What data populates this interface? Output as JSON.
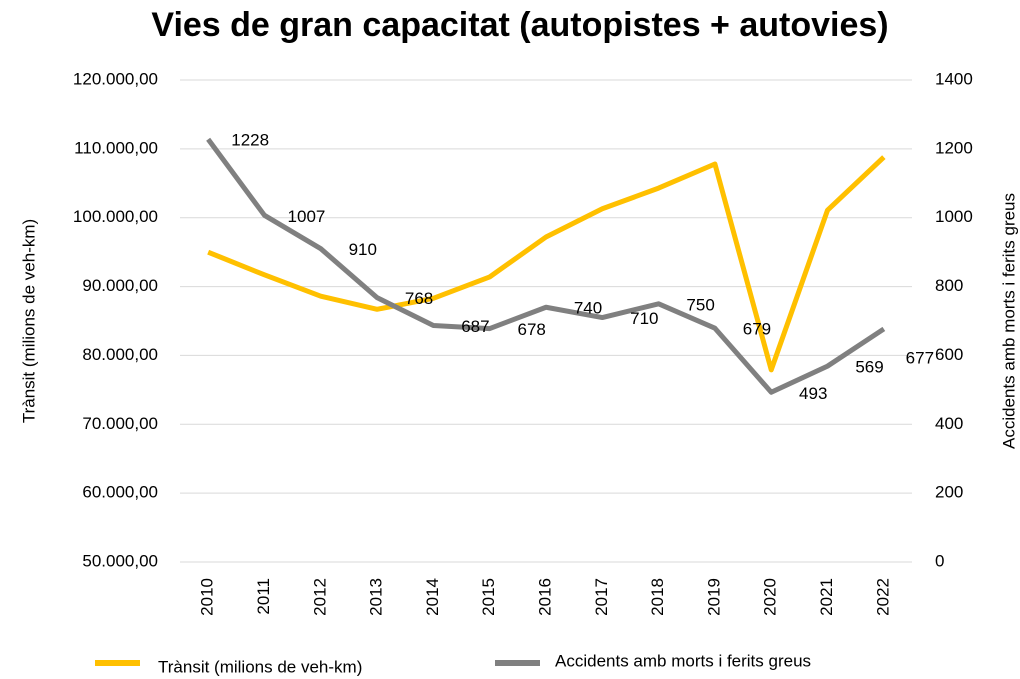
{
  "chart_data": {
    "type": "line",
    "title": "Vies de gran capacitat (autopistes + autovies)",
    "y_label": "Trànsit (milions de veh-km)",
    "y2_label": "Accidents amb morts i ferits greus",
    "categories": [
      "2010",
      "2011",
      "2012",
      "2013",
      "2014",
      "2015",
      "2016",
      "2017",
      "2018",
      "2019",
      "2020",
      "2021",
      "2022"
    ],
    "series": [
      {
        "name": "Trànsit (milions de veh-km)",
        "color": "#ffc000",
        "values": [
          95000,
          91700,
          88600,
          86700,
          88300,
          91400,
          97200,
          101300,
          104300,
          107800,
          77900,
          101100,
          108800
        ]
      },
      {
        "name": "Accidents amb morts i ferits greus",
        "color": "#808080",
        "axis": "y2",
        "values": [
          1228,
          1007,
          910,
          768,
          687,
          678,
          740,
          710,
          750,
          679,
          493,
          569,
          677
        ]
      }
    ],
    "ylim": [
      50000,
      120000
    ],
    "yticks": [
      {
        "value": 50000,
        "label": "50.000,00"
      },
      {
        "value": 60000,
        "label": "60.000,00"
      },
      {
        "value": 70000,
        "label": "70.000,00"
      },
      {
        "value": 80000,
        "label": "80.000,00"
      },
      {
        "value": 90000,
        "label": "90.000,00"
      },
      {
        "value": 100000,
        "label": "100.000,00"
      },
      {
        "value": 110000,
        "label": "110.000,00"
      },
      {
        "value": 120000,
        "label": "120.000,00"
      }
    ],
    "y2lim": [
      0,
      1400
    ],
    "y2ticks": [
      0,
      200,
      400,
      600,
      800,
      1000,
      1200,
      1400
    ],
    "grid": true,
    "legend": "bottom"
  }
}
